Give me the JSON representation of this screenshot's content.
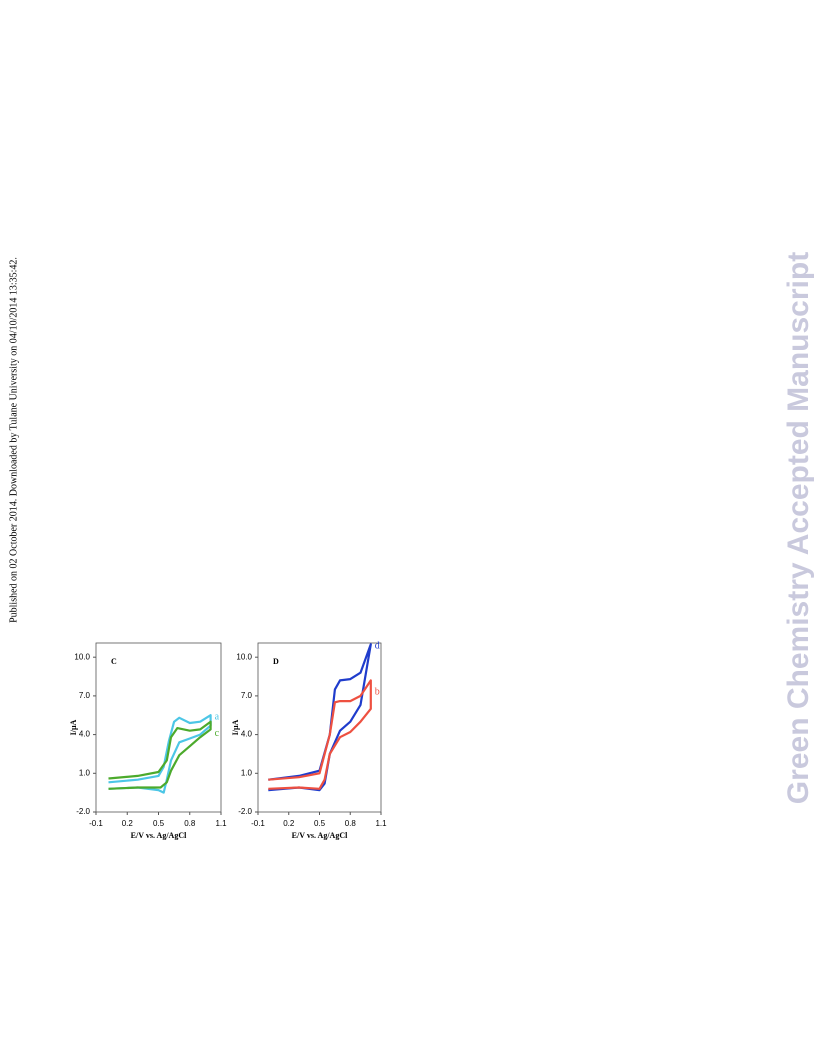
{
  "sidebar": "Published on 02 October 2014. Downloaded by Tulane University on 04/10/2014 13:35:42.",
  "watermark": "Green Chemistry Accepted Manuscript",
  "chart_data": [
    {
      "type": "line",
      "panel_label": "C",
      "x_label": "E/V vs. Ag/AgCl",
      "y_label": "I/μA",
      "xlim": [
        -0.1,
        1.1
      ],
      "xticks": [
        -0.1,
        0.2,
        0.5,
        0.8,
        1.1
      ],
      "ylim": [
        -2,
        11.1
      ],
      "yticks": [
        {
          "value": -2,
          "label": "-2.0"
        },
        {
          "value": 1,
          "label": "1.0"
        },
        {
          "value": 4,
          "label": "4.0"
        },
        {
          "value": 7,
          "label": "7.0"
        },
        {
          "value": 10,
          "label": "10.0"
        }
      ],
      "series": [
        {
          "name": "a",
          "color": "#4cc6e6",
          "x": [
            0.02,
            0.3,
            0.5,
            0.55,
            0.6,
            0.65,
            0.7,
            0.8,
            0.9,
            1.0,
            1.0,
            0.9,
            0.8,
            0.7,
            0.62,
            0.58,
            0.55,
            0.5,
            0.3,
            0.02
          ],
          "values": [
            0.3,
            0.5,
            0.8,
            1.5,
            3.5,
            5.0,
            5.3,
            4.9,
            5.0,
            5.5,
            4.7,
            4.0,
            3.7,
            3.4,
            2.0,
            0.5,
            -0.5,
            -0.3,
            -0.1,
            -0.2
          ]
        },
        {
          "name": "c",
          "color": "#4caa2c",
          "x": [
            0.02,
            0.3,
            0.5,
            0.58,
            0.62,
            0.68,
            0.8,
            0.9,
            1.0,
            1.0,
            0.9,
            0.8,
            0.7,
            0.62,
            0.58,
            0.52,
            0.3,
            0.02
          ],
          "values": [
            0.6,
            0.8,
            1.1,
            2.0,
            3.8,
            4.5,
            4.3,
            4.4,
            5.0,
            4.4,
            3.8,
            3.1,
            2.4,
            1.2,
            0.3,
            -0.1,
            -0.1,
            -0.2
          ]
        }
      ]
    },
    {
      "type": "line",
      "panel_label": "D",
      "x_label": "E/V vs. Ag/AgCl",
      "y_label": "I/μA",
      "xlim": [
        -0.1,
        1.1
      ],
      "xticks": [
        -0.1,
        0.2,
        0.5,
        0.8,
        1.1
      ],
      "ylim": [
        -2,
        11.1
      ],
      "yticks": [
        {
          "value": -2,
          "label": "-2.0"
        },
        {
          "value": 1,
          "label": "1.0"
        },
        {
          "value": 4,
          "label": "4.0"
        },
        {
          "value": 7,
          "label": "7.0"
        },
        {
          "value": 10,
          "label": "10.0"
        }
      ],
      "series": [
        {
          "name": "d",
          "color": "#1f3ccc",
          "x": [
            0.0,
            0.3,
            0.5,
            0.6,
            0.65,
            0.7,
            0.8,
            0.9,
            1.0,
            0.9,
            0.8,
            0.7,
            0.6,
            0.55,
            0.5,
            0.3,
            0.0
          ],
          "values": [
            0.5,
            0.8,
            1.2,
            4.0,
            7.5,
            8.2,
            8.3,
            8.8,
            11.0,
            6.3,
            5.0,
            4.3,
            2.5,
            0.2,
            -0.3,
            -0.1,
            -0.3
          ]
        },
        {
          "name": "b",
          "color": "#ee5040",
          "x": [
            0.0,
            0.3,
            0.5,
            0.6,
            0.65,
            0.7,
            0.8,
            0.9,
            1.0,
            1.0,
            0.9,
            0.8,
            0.7,
            0.6,
            0.55,
            0.5,
            0.3,
            0.0
          ],
          "values": [
            0.5,
            0.7,
            1.0,
            4.0,
            6.5,
            6.6,
            6.6,
            7.0,
            8.2,
            6.0,
            5.0,
            4.2,
            3.8,
            2.5,
            0.5,
            -0.2,
            -0.1,
            -0.2
          ]
        }
      ]
    }
  ]
}
